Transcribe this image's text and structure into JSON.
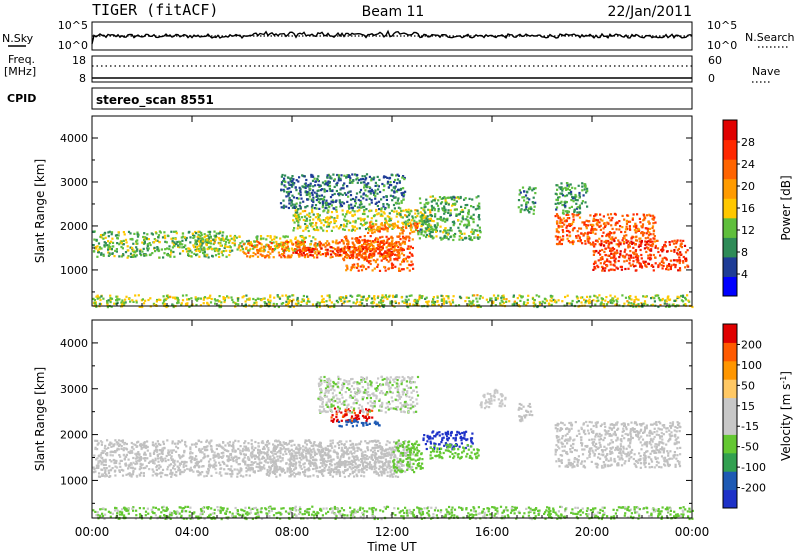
{
  "header": {
    "station": "TIGER (fitACF)",
    "beam": "Beam 11",
    "date": "22/Jan/2011"
  },
  "noise_panel": {
    "left_label": "N.Sky",
    "right_label": "N.Search",
    "left_ticks": [
      "10^5",
      "10^0"
    ],
    "right_ticks": [
      "10^5",
      "10^0"
    ]
  },
  "freq_panel": {
    "left_label_1": "Freq.",
    "left_label_2": "[MHz]",
    "right_label": "Nave",
    "left_ticks": [
      "18",
      "8"
    ],
    "right_ticks": [
      "60",
      "0"
    ]
  },
  "cpid_panel": {
    "label": "CPID",
    "value": "stereo_scan 8551"
  },
  "colors": {
    "power_scale": [
      "#0000ff",
      "#1e3c96",
      "#2e8b57",
      "#5fbf3c",
      "#ffc800",
      "#ff9b00",
      "#ff6400",
      "#ff2800",
      "#e00000"
    ],
    "velocity_scale": [
      "#e00000",
      "#ff5a00",
      "#ff9600",
      "#ffc864",
      "#c8c8c8",
      "#c8c8c8",
      "#64c832",
      "#32a050",
      "#1e5ab4",
      "#1e32c8"
    ],
    "ground_scatter": "#c0c0c0"
  },
  "chart_data": [
    {
      "type": "heatmap",
      "name": "Power",
      "xlabel": "",
      "ylabel": "Slant Range [km]",
      "x_ticks": [
        "00:00",
        "04:00",
        "08:00",
        "12:00",
        "16:00",
        "20:00",
        "00:00"
      ],
      "xlim_hours": [
        0,
        24
      ],
      "y_ticks": [
        1000,
        2000,
        3000,
        4000
      ],
      "ylim": [
        180,
        4500
      ],
      "colorbar_label": "Power [dB]",
      "colorbar_ticks": [
        4,
        8,
        12,
        16,
        20,
        24,
        28
      ],
      "colorbar_range": [
        0,
        32
      ],
      "echo_bands": [
        {
          "t": [
            0,
            5.5
          ],
          "r": [
            1300,
            1900
          ],
          "level": 12
        },
        {
          "t": [
            4,
            9
          ],
          "r": [
            1450,
            1800
          ],
          "level": 14
        },
        {
          "t": [
            6,
            12.5
          ],
          "r": [
            1300,
            1700
          ],
          "level": 22
        },
        {
          "t": [
            8,
            12
          ],
          "r": [
            1350,
            1550
          ],
          "level": 27
        },
        {
          "t": [
            10,
            12.8
          ],
          "r": [
            1000,
            1800
          ],
          "level": 24
        },
        {
          "t": [
            8,
            13.5
          ],
          "r": [
            1900,
            2400
          ],
          "level": 14
        },
        {
          "t": [
            11,
            13
          ],
          "r": [
            1850,
            2100
          ],
          "level": 22
        },
        {
          "t": [
            7.5,
            12.5
          ],
          "r": [
            2400,
            3200
          ],
          "level": 8
        },
        {
          "t": [
            13,
            15.5
          ],
          "r": [
            1700,
            2700
          ],
          "level": 11
        },
        {
          "t": [
            17,
            17.7
          ],
          "r": [
            2300,
            2900
          ],
          "level": 10
        },
        {
          "t": [
            18.5,
            22.5
          ],
          "r": [
            1600,
            2300
          ],
          "level": 24
        },
        {
          "t": [
            20,
            23.8
          ],
          "r": [
            1000,
            1700
          ],
          "level": 26
        },
        {
          "t": [
            18.5,
            19.8
          ],
          "r": [
            2300,
            3000
          ],
          "level": 10
        },
        {
          "t": [
            0,
            24
          ],
          "r": [
            180,
            450
          ],
          "level": 14
        }
      ]
    },
    {
      "type": "heatmap",
      "name": "Velocity",
      "xlabel": "Time UT",
      "ylabel": "Slant Range [km]",
      "x_ticks": [
        "00:00",
        "04:00",
        "08:00",
        "12:00",
        "16:00",
        "20:00",
        "00:00"
      ],
      "xlim_hours": [
        0,
        24
      ],
      "y_ticks": [
        1000,
        2000,
        3000,
        4000
      ],
      "ylim": [
        180,
        4500
      ],
      "colorbar_label": "Velocity [m s^-1]",
      "colorbar_ticks": [
        200,
        100,
        50,
        15,
        -15,
        -50,
        -100,
        -200
      ],
      "colorbar_range": [
        -250,
        250
      ],
      "echo_bands": [
        {
          "t": [
            0,
            12.5
          ],
          "r": [
            1100,
            1900
          ],
          "level": 0
        },
        {
          "t": [
            6,
            12.8
          ],
          "r": [
            1200,
            1750
          ],
          "level": 0
        },
        {
          "t": [
            9.5,
            11.2
          ],
          "r": [
            2300,
            2600
          ],
          "level": 210
        },
        {
          "t": [
            9.8,
            11.5
          ],
          "r": [
            2200,
            2350
          ],
          "level": -180
        },
        {
          "t": [
            12,
            13.2
          ],
          "r": [
            1200,
            1900
          ],
          "level": -80
        },
        {
          "t": [
            13.2,
            15.2
          ],
          "r": [
            1700,
            2100
          ],
          "level": -220
        },
        {
          "t": [
            13.5,
            15.5
          ],
          "r": [
            1500,
            1800
          ],
          "level": -70
        },
        {
          "t": [
            15.5,
            16.5
          ],
          "r": [
            2600,
            3000
          ],
          "level": -30
        },
        {
          "t": [
            17,
            17.6
          ],
          "r": [
            2300,
            2700
          ],
          "level": 0
        },
        {
          "t": [
            18.5,
            23.5
          ],
          "r": [
            1300,
            2300
          ],
          "level": 0
        },
        {
          "t": [
            9,
            13
          ],
          "r": [
            2500,
            3300
          ],
          "level": -40
        },
        {
          "t": [
            0,
            24
          ],
          "r": [
            180,
            450
          ],
          "level": -60
        }
      ]
    }
  ]
}
